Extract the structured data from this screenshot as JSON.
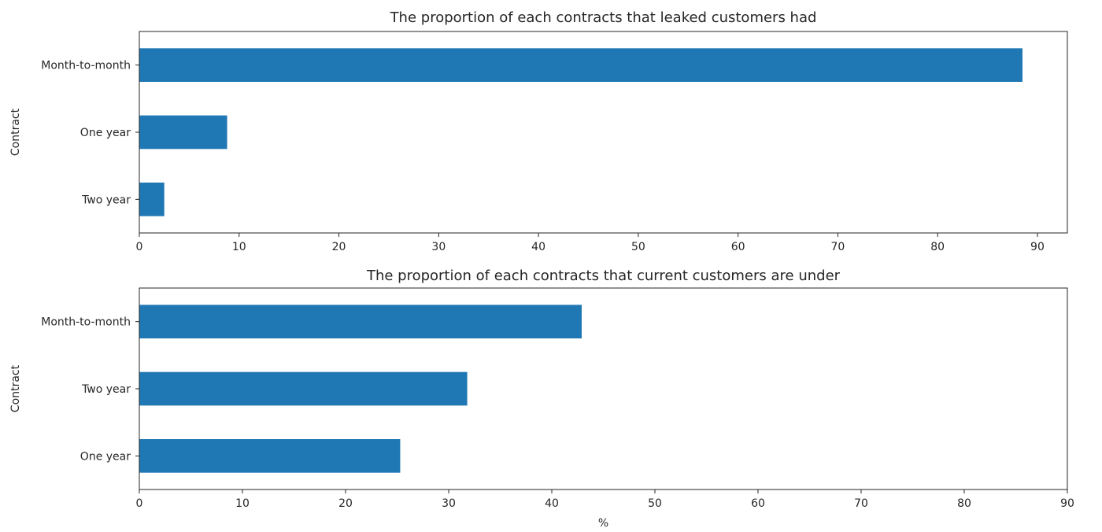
{
  "chart_data": [
    {
      "type": "bar",
      "orientation": "horizontal",
      "title": "The proportion of each contracts that leaked customers had",
      "xlabel": "",
      "ylabel": "Contract",
      "categories": [
        "Two year",
        "One year",
        "Month-to-month"
      ],
      "values": [
        2.5,
        8.8,
        88.5
      ],
      "xlim": [
        0,
        93
      ],
      "xticks": [
        0,
        10,
        20,
        30,
        40,
        50,
        60,
        70,
        80,
        90
      ],
      "bar_color": "#1f77b4",
      "grid": false
    },
    {
      "type": "bar",
      "orientation": "horizontal",
      "title": "The proportion of each contracts that current customers are under",
      "xlabel": "%",
      "ylabel": "Contract",
      "categories": [
        "One year",
        "Two year",
        "Month-to-month"
      ],
      "values": [
        25.3,
        31.8,
        42.9
      ],
      "xlim": [
        0,
        90
      ],
      "xticks": [
        0,
        10,
        20,
        30,
        40,
        50,
        60,
        70,
        80,
        90
      ],
      "bar_color": "#1f77b4",
      "grid": false
    }
  ]
}
